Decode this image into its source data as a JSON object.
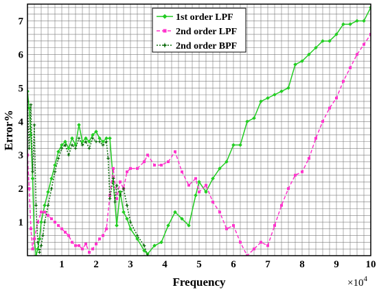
{
  "chart_data": {
    "type": "line",
    "xlabel": "Frequency",
    "ylabel": "Error%",
    "x_multiplier": "×10",
    "x_multiplier_exp": "4",
    "xlim": [
      0,
      10
    ],
    "ylim": [
      0,
      7.5
    ],
    "x_ticks": [
      1,
      2,
      3,
      4,
      5,
      6,
      7,
      8,
      9,
      10
    ],
    "y_ticks": [
      1,
      2,
      3,
      4,
      5,
      6,
      7
    ],
    "grid": true,
    "legend_position": "top-center",
    "series": [
      {
        "name": "1st order LPF",
        "color": "#22cc22",
        "style": "solid",
        "marker": "diamond",
        "points": [
          [
            0.0,
            4.9
          ],
          [
            0.05,
            4.4
          ],
          [
            0.1,
            3.6
          ],
          [
            0.15,
            2.3
          ],
          [
            0.2,
            0.5
          ],
          [
            0.25,
            0.0
          ],
          [
            0.3,
            0.2
          ],
          [
            0.35,
            0.5
          ],
          [
            0.4,
            1.0
          ],
          [
            0.5,
            1.5
          ],
          [
            0.6,
            1.9
          ],
          [
            0.7,
            2.3
          ],
          [
            0.8,
            2.7
          ],
          [
            0.9,
            3.1
          ],
          [
            1.0,
            3.3
          ],
          [
            1.1,
            3.4
          ],
          [
            1.2,
            3.2
          ],
          [
            1.3,
            3.5
          ],
          [
            1.4,
            3.3
          ],
          [
            1.5,
            3.9
          ],
          [
            1.6,
            3.4
          ],
          [
            1.7,
            3.5
          ],
          [
            1.8,
            3.4
          ],
          [
            1.9,
            3.6
          ],
          [
            2.0,
            3.7
          ],
          [
            2.1,
            3.5
          ],
          [
            2.2,
            3.4
          ],
          [
            2.3,
            3.5
          ],
          [
            2.4,
            3.5
          ],
          [
            2.5,
            2.2
          ],
          [
            2.6,
            0.9
          ],
          [
            2.7,
            1.9
          ],
          [
            2.8,
            1.3
          ],
          [
            2.9,
            1.1
          ],
          [
            3.0,
            0.8
          ],
          [
            3.2,
            0.5
          ],
          [
            3.4,
            0.15
          ],
          [
            3.5,
            0.05
          ],
          [
            3.7,
            0.3
          ],
          [
            3.9,
            0.4
          ],
          [
            4.1,
            0.9
          ],
          [
            4.3,
            1.3
          ],
          [
            4.5,
            1.1
          ],
          [
            4.7,
            0.9
          ],
          [
            4.9,
            1.8
          ],
          [
            5.0,
            2.2
          ],
          [
            5.2,
            1.9
          ],
          [
            5.4,
            2.3
          ],
          [
            5.6,
            2.6
          ],
          [
            5.8,
            2.8
          ],
          [
            6.0,
            3.3
          ],
          [
            6.2,
            3.3
          ],
          [
            6.4,
            4.0
          ],
          [
            6.6,
            4.1
          ],
          [
            6.8,
            4.6
          ],
          [
            7.0,
            4.7
          ],
          [
            7.2,
            4.8
          ],
          [
            7.4,
            4.9
          ],
          [
            7.6,
            5.0
          ],
          [
            7.8,
            5.7
          ],
          [
            8.0,
            5.8
          ],
          [
            8.2,
            6.0
          ],
          [
            8.4,
            6.2
          ],
          [
            8.6,
            6.4
          ],
          [
            8.8,
            6.4
          ],
          [
            9.0,
            6.6
          ],
          [
            9.2,
            6.9
          ],
          [
            9.4,
            6.9
          ],
          [
            9.6,
            7.0
          ],
          [
            9.8,
            7.0
          ],
          [
            10.0,
            7.4
          ]
        ]
      },
      {
        "name": "2nd order LPF",
        "color": "#ff33cc",
        "style": "dashed",
        "marker": "square",
        "points": [
          [
            0.0,
            3.0
          ],
          [
            0.05,
            2.0
          ],
          [
            0.1,
            0.8
          ],
          [
            0.15,
            0.2
          ],
          [
            0.2,
            0.5
          ],
          [
            0.3,
            1.0
          ],
          [
            0.4,
            1.3
          ],
          [
            0.5,
            1.3
          ],
          [
            0.6,
            1.2
          ],
          [
            0.7,
            1.1
          ],
          [
            0.8,
            1.0
          ],
          [
            0.9,
            0.9
          ],
          [
            1.0,
            0.8
          ],
          [
            1.1,
            0.7
          ],
          [
            1.2,
            0.6
          ],
          [
            1.3,
            0.4
          ],
          [
            1.4,
            0.3
          ],
          [
            1.5,
            0.3
          ],
          [
            1.6,
            0.2
          ],
          [
            1.7,
            0.35
          ],
          [
            1.8,
            0.1
          ],
          [
            1.9,
            0.2
          ],
          [
            2.0,
            0.35
          ],
          [
            2.1,
            0.5
          ],
          [
            2.2,
            0.6
          ],
          [
            2.3,
            0.8
          ],
          [
            2.4,
            1.8
          ],
          [
            2.5,
            2.6
          ],
          [
            2.6,
            1.7
          ],
          [
            2.7,
            2.2
          ],
          [
            2.8,
            2.0
          ],
          [
            2.9,
            2.5
          ],
          [
            3.0,
            2.6
          ],
          [
            3.2,
            2.6
          ],
          [
            3.4,
            2.8
          ],
          [
            3.5,
            3.0
          ],
          [
            3.7,
            2.7
          ],
          [
            3.9,
            2.7
          ],
          [
            4.1,
            2.8
          ],
          [
            4.3,
            3.1
          ],
          [
            4.5,
            2.5
          ],
          [
            4.7,
            2.1
          ],
          [
            4.9,
            2.3
          ],
          [
            5.0,
            1.9
          ],
          [
            5.2,
            2.1
          ],
          [
            5.4,
            1.6
          ],
          [
            5.6,
            1.3
          ],
          [
            5.8,
            0.8
          ],
          [
            6.0,
            0.9
          ],
          [
            6.2,
            0.4
          ],
          [
            6.4,
            0.0
          ],
          [
            6.6,
            0.2
          ],
          [
            6.8,
            0.4
          ],
          [
            7.0,
            0.3
          ],
          [
            7.2,
            0.9
          ],
          [
            7.4,
            1.5
          ],
          [
            7.6,
            2.0
          ],
          [
            7.8,
            2.4
          ],
          [
            8.0,
            2.5
          ],
          [
            8.2,
            2.9
          ],
          [
            8.4,
            3.5
          ],
          [
            8.6,
            4.0
          ],
          [
            8.8,
            4.4
          ],
          [
            9.0,
            4.7
          ],
          [
            9.2,
            5.2
          ],
          [
            9.4,
            5.6
          ],
          [
            9.6,
            6.0
          ],
          [
            9.8,
            6.3
          ],
          [
            10.0,
            6.6
          ]
        ]
      },
      {
        "name": "2nd order BPF",
        "color": "#0a6a0a",
        "style": "dashed",
        "marker": "star",
        "points": [
          [
            0.0,
            4.6
          ],
          [
            0.05,
            3.2
          ],
          [
            0.1,
            4.5
          ],
          [
            0.15,
            2.5
          ],
          [
            0.2,
            3.9
          ],
          [
            0.25,
            1.5
          ],
          [
            0.3,
            0.4
          ],
          [
            0.35,
            0.1
          ],
          [
            0.4,
            0.3
          ],
          [
            0.45,
            0.6
          ],
          [
            0.5,
            1.0
          ],
          [
            0.6,
            1.5
          ],
          [
            0.7,
            2.0
          ],
          [
            0.8,
            2.5
          ],
          [
            0.9,
            2.9
          ],
          [
            1.0,
            3.2
          ],
          [
            1.1,
            3.3
          ],
          [
            1.2,
            3.0
          ],
          [
            1.3,
            3.3
          ],
          [
            1.4,
            3.2
          ],
          [
            1.5,
            3.5
          ],
          [
            1.6,
            3.3
          ],
          [
            1.7,
            3.4
          ],
          [
            1.8,
            3.2
          ],
          [
            1.9,
            3.5
          ],
          [
            2.0,
            3.4
          ],
          [
            2.1,
            3.4
          ],
          [
            2.2,
            3.3
          ],
          [
            2.3,
            3.4
          ],
          [
            2.35,
            2.9
          ],
          [
            2.4,
            1.7
          ],
          [
            2.5,
            2.3
          ],
          [
            2.55,
            1.6
          ],
          [
            2.6,
            2.1
          ],
          [
            2.7,
            1.8
          ],
          [
            2.8,
            2.0
          ],
          [
            2.9,
            1.5
          ],
          [
            3.0,
            1.0
          ],
          [
            3.2,
            0.6
          ],
          [
            3.4,
            0.3
          ],
          [
            3.5,
            0.0
          ]
        ]
      }
    ]
  }
}
